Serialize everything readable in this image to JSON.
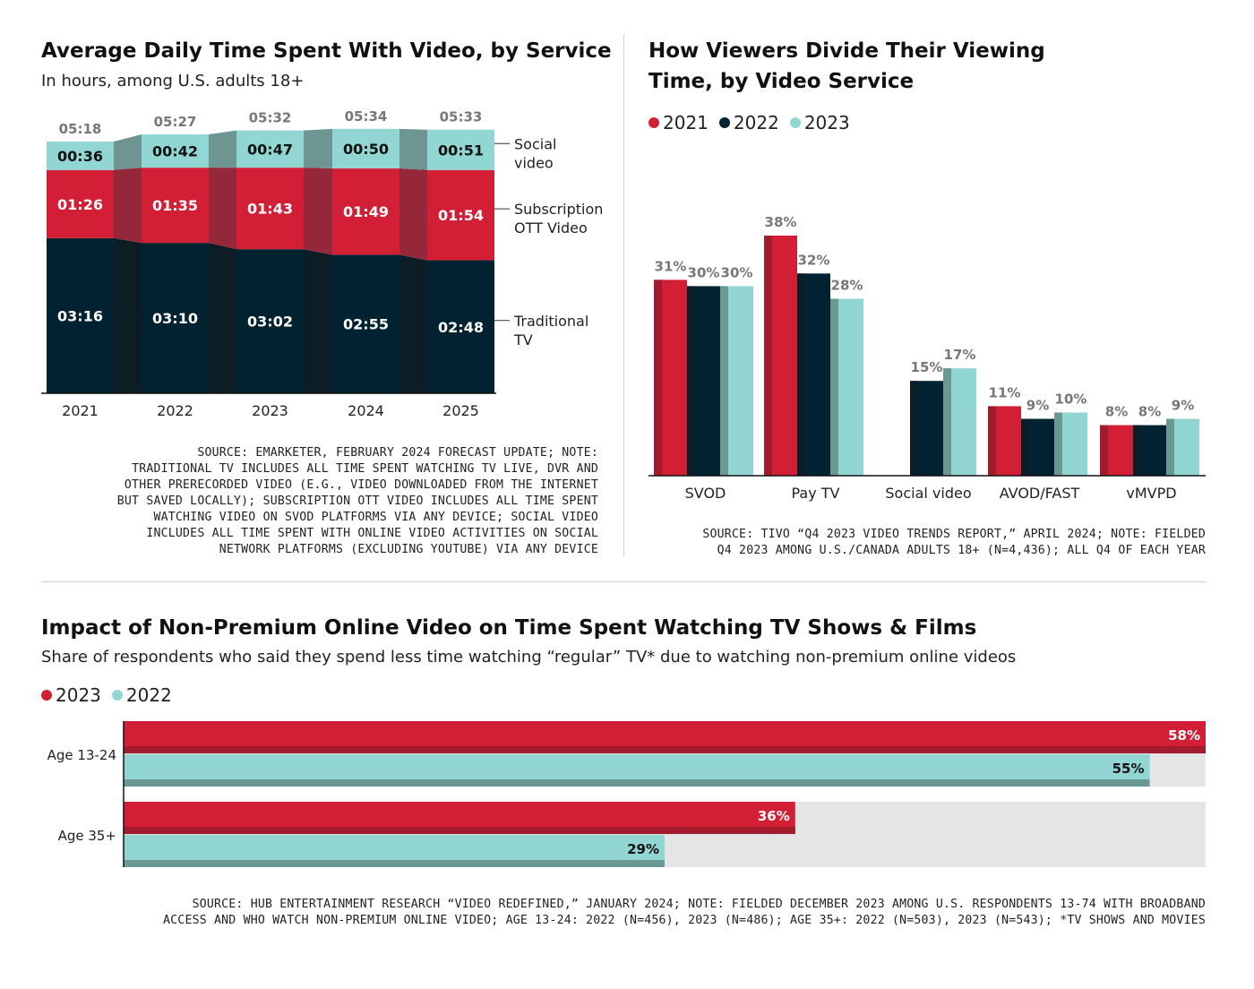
{
  "chart1": {
    "title": "Average Daily Time Spent With Video, by Service",
    "subtitle": "In hours, among U.S. adults 18+",
    "source": "SOURCE: EMARKETER, FEBRUARY 2024 FORECAST UPDATE; NOTE: TRADITIONAL TV INCLUDES ALL TIME SPENT WATCHING TV LIVE, DVR AND OTHER PRERECORDED VIDEO (E.G., VIDEO DOWNLOADED FROM THE INTERNET BUT SAVED LOCALLY); SUBSCRIPTION OTT VIDEO INCLUDES ALL TIME SPENT WATCHING VIDEO ON SVOD PLATFORMS VIA ANY DEVICE; SOCIAL VIDEO INCLUDES ALL TIME SPENT WITH ONLINE VIDEO ACTIVITIES ON SOCIAL NETWORK PLATFORMS (EXCLUDING YOUTUBE) VIA ANY DEVICE",
    "source_lines": [
      "SOURCE: EMARKETER, FEBRUARY 2024 FORECAST UPDATE; NOTE:",
      "TRADITIONAL TV INCLUDES ALL TIME SPENT WATCHING TV LIVE, DVR AND",
      "OTHER PRERECORDED VIDEO (E.G., VIDEO DOWNLOADED FROM THE INTERNET",
      "BUT SAVED LOCALLY); SUBSCRIPTION OTT VIDEO INCLUDES ALL TIME SPENT",
      "WATCHING VIDEO ON SVOD PLATFORMS VIA ANY DEVICE; SOCIAL VIDEO",
      "INCLUDES ALL TIME SPENT WITH ONLINE VIDEO ACTIVITIES ON SOCIAL",
      "NETWORK PLATFORMS (EXCLUDING YOUTUBE) VIA ANY DEVICE"
    ]
  },
  "chart2": {
    "title_line1": "How Viewers Divide Their Viewing",
    "title_line2": "Time, by Video Service",
    "source_lines": [
      "SOURCE: TIVO “Q4 2023 VIDEO TRENDS REPORT,” APRIL 2024; NOTE: FIELDED",
      "Q4 2023 AMONG U.S./CANADA ADULTS 18+ (N=4,436); ALL Q4 OF EACH YEAR"
    ]
  },
  "chart3": {
    "title": "Impact of Non-Premium Online Video on Time Spent Watching TV Shows & Films",
    "subtitle": "Share of respondents who said they spend less time watching “regular” TV* due to watching non-premium online videos",
    "source_lines": [
      "SOURCE: HUB ENTERTAINMENT RESEARCH “VIDEO REDEFINED,” JANUARY 2024; NOTE: FIELDED DECEMBER 2023 AMONG U.S. RESPONDENTS 13-74 WITH BROADBAND",
      "ACCESS AND WHO WATCH NON-PREMIUM ONLINE VIDEO; AGE 13-24: 2022 (N=456), 2023 (N=486); AGE 35+: 2022 (N=503), 2023 (N=543); *TV SHOWS AND MOVIES"
    ]
  },
  "colors": {
    "red": "#d21f35",
    "red_dark": "#a11c2c",
    "navy": "#012231",
    "teal": "#91d6d3",
    "teal_dark": "#6a9892",
    "band_social": "#6f9593",
    "band_ott": "#94273a",
    "band_tv": "#0c1d25",
    "track": "#e6e5e5"
  },
  "chart_data": [
    {
      "type": "bar",
      "stacked": true,
      "unit": "hours (hh:mm)",
      "categories": [
        "2021",
        "2022",
        "2023",
        "2024",
        "2025"
      ],
      "totals": [
        "05:18",
        "05:27",
        "05:32",
        "05:34",
        "05:33"
      ],
      "series": [
        {
          "name": "Traditional TV",
          "values": [
            196,
            190,
            182,
            175,
            168
          ],
          "labels": [
            "03:16",
            "03:10",
            "03:02",
            "02:55",
            "02:48"
          ],
          "color": "#012231"
        },
        {
          "name": "Subscription OTT Video",
          "values": [
            86,
            95,
            103,
            109,
            114
          ],
          "labels": [
            "01:26",
            "01:35",
            "01:43",
            "01:49",
            "01:54"
          ],
          "color": "#d21f35"
        },
        {
          "name": "Social video",
          "values": [
            36,
            42,
            47,
            50,
            51
          ],
          "labels": [
            "00:36",
            "00:42",
            "00:47",
            "00:50",
            "00:51"
          ],
          "color": "#91d6d3"
        }
      ],
      "series_label_lines": [
        [
          "Traditional",
          "TV"
        ],
        [
          "Subscription",
          "OTT Video"
        ],
        [
          "Social",
          "video"
        ]
      ],
      "ylim": [
        0,
        360
      ]
    },
    {
      "type": "bar",
      "unit": "%",
      "categories": [
        "SVOD",
        "Pay TV",
        "Social video",
        "AVOD/FAST",
        "vMVPD"
      ],
      "legend": [
        "2021",
        "2022",
        "2023"
      ],
      "legend_position": "top-left",
      "series": [
        {
          "name": "2021",
          "values": [
            31,
            38,
            null,
            11,
            8
          ],
          "color": "#d21f35"
        },
        {
          "name": "2022",
          "values": [
            30,
            32,
            15,
            9,
            8
          ],
          "color": "#012231"
        },
        {
          "name": "2023",
          "values": [
            30,
            28,
            17,
            10,
            9
          ],
          "color": "#91d6d3"
        }
      ],
      "ylim": [
        0,
        40
      ]
    },
    {
      "type": "bar",
      "orientation": "horizontal",
      "unit": "%",
      "categories": [
        "Age 13-24",
        "Age 35+"
      ],
      "legend": [
        "2023",
        "2022"
      ],
      "legend_position": "top-left",
      "series": [
        {
          "name": "2023",
          "values": [
            58,
            36
          ],
          "color": "#d21f35"
        },
        {
          "name": "2022",
          "values": [
            55,
            29
          ],
          "color": "#91d6d3"
        }
      ],
      "xlim": [
        0,
        58
      ]
    }
  ]
}
